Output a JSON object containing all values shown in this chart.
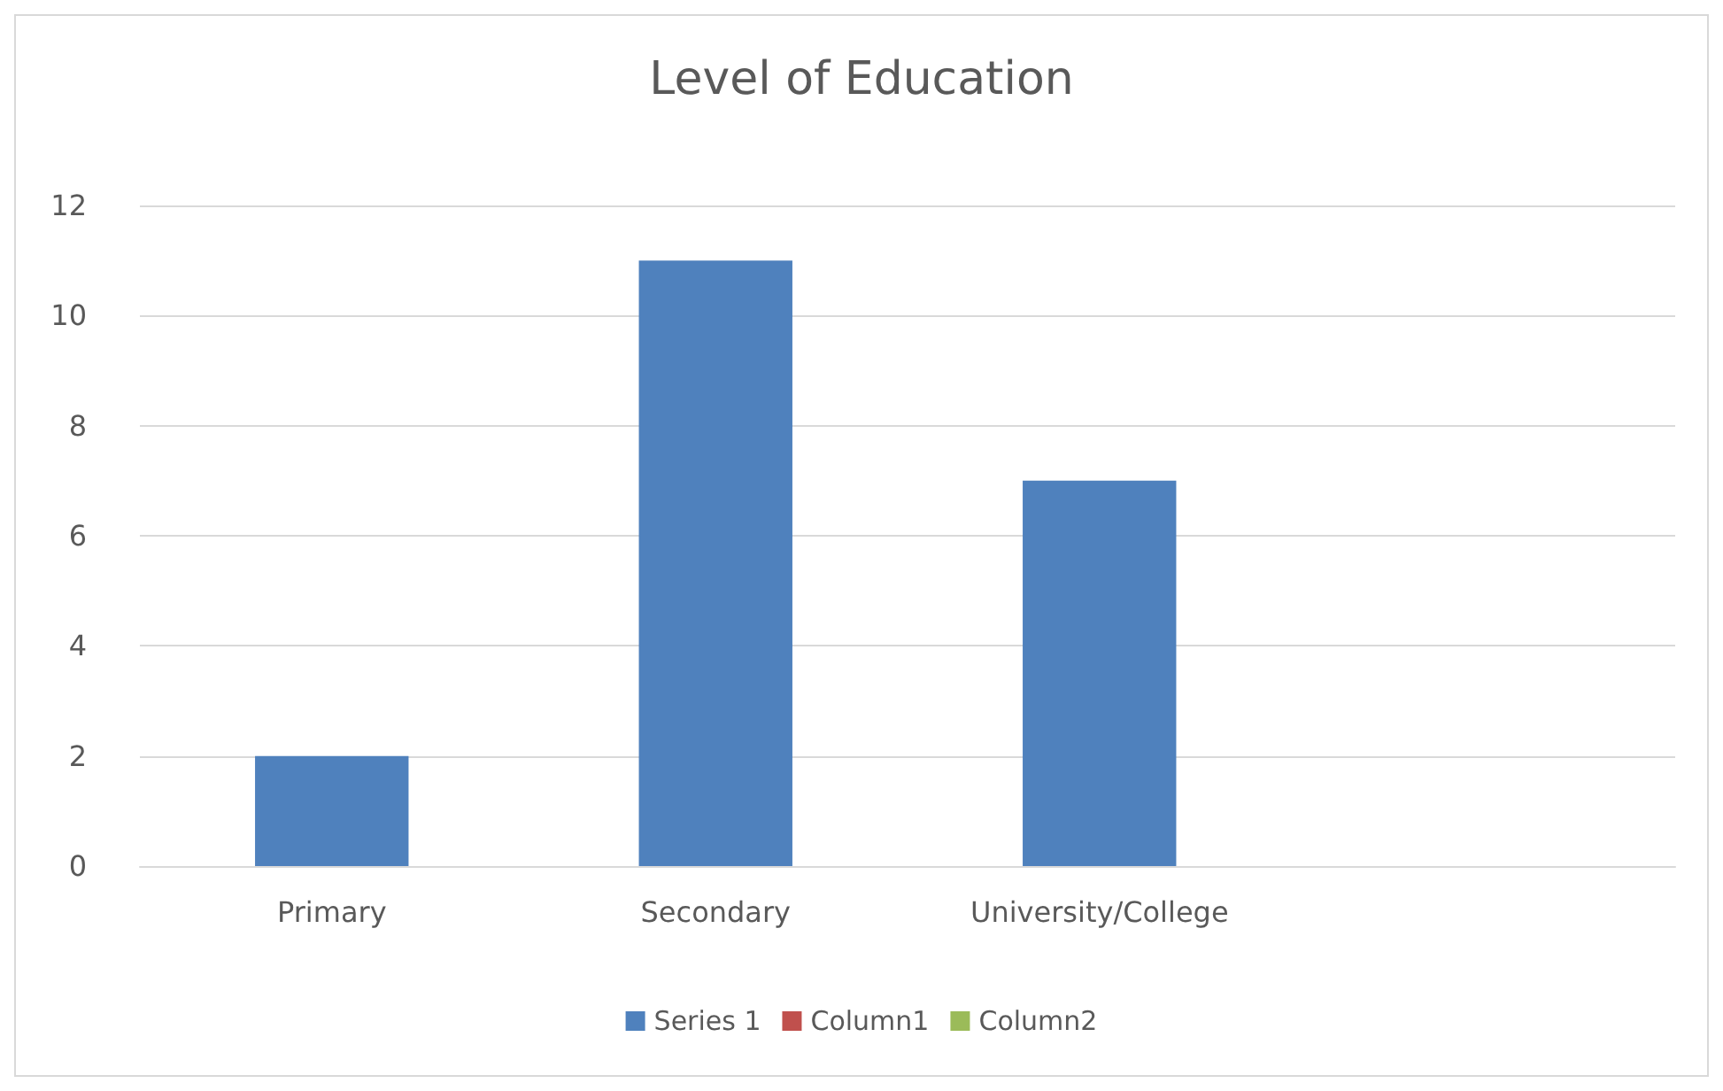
{
  "chart_data": {
    "type": "bar",
    "title": "Level of Education",
    "categories": [
      "Primary",
      "Secondary",
      "University/College",
      null
    ],
    "series": [
      {
        "name": "Series 1",
        "color": "#4f81bd",
        "values": [
          2,
          11,
          7,
          null
        ]
      },
      {
        "name": "Column1",
        "color": "#c0504d",
        "values": [
          null,
          null,
          null,
          null
        ]
      },
      {
        "name": "Column2",
        "color": "#9bbb59",
        "values": [
          null,
          null,
          null,
          null
        ]
      }
    ],
    "ylim": [
      0,
      12
    ],
    "yticks": [
      0,
      2,
      4,
      6,
      8,
      10,
      12
    ],
    "grid": "y",
    "legend": "bottom"
  }
}
